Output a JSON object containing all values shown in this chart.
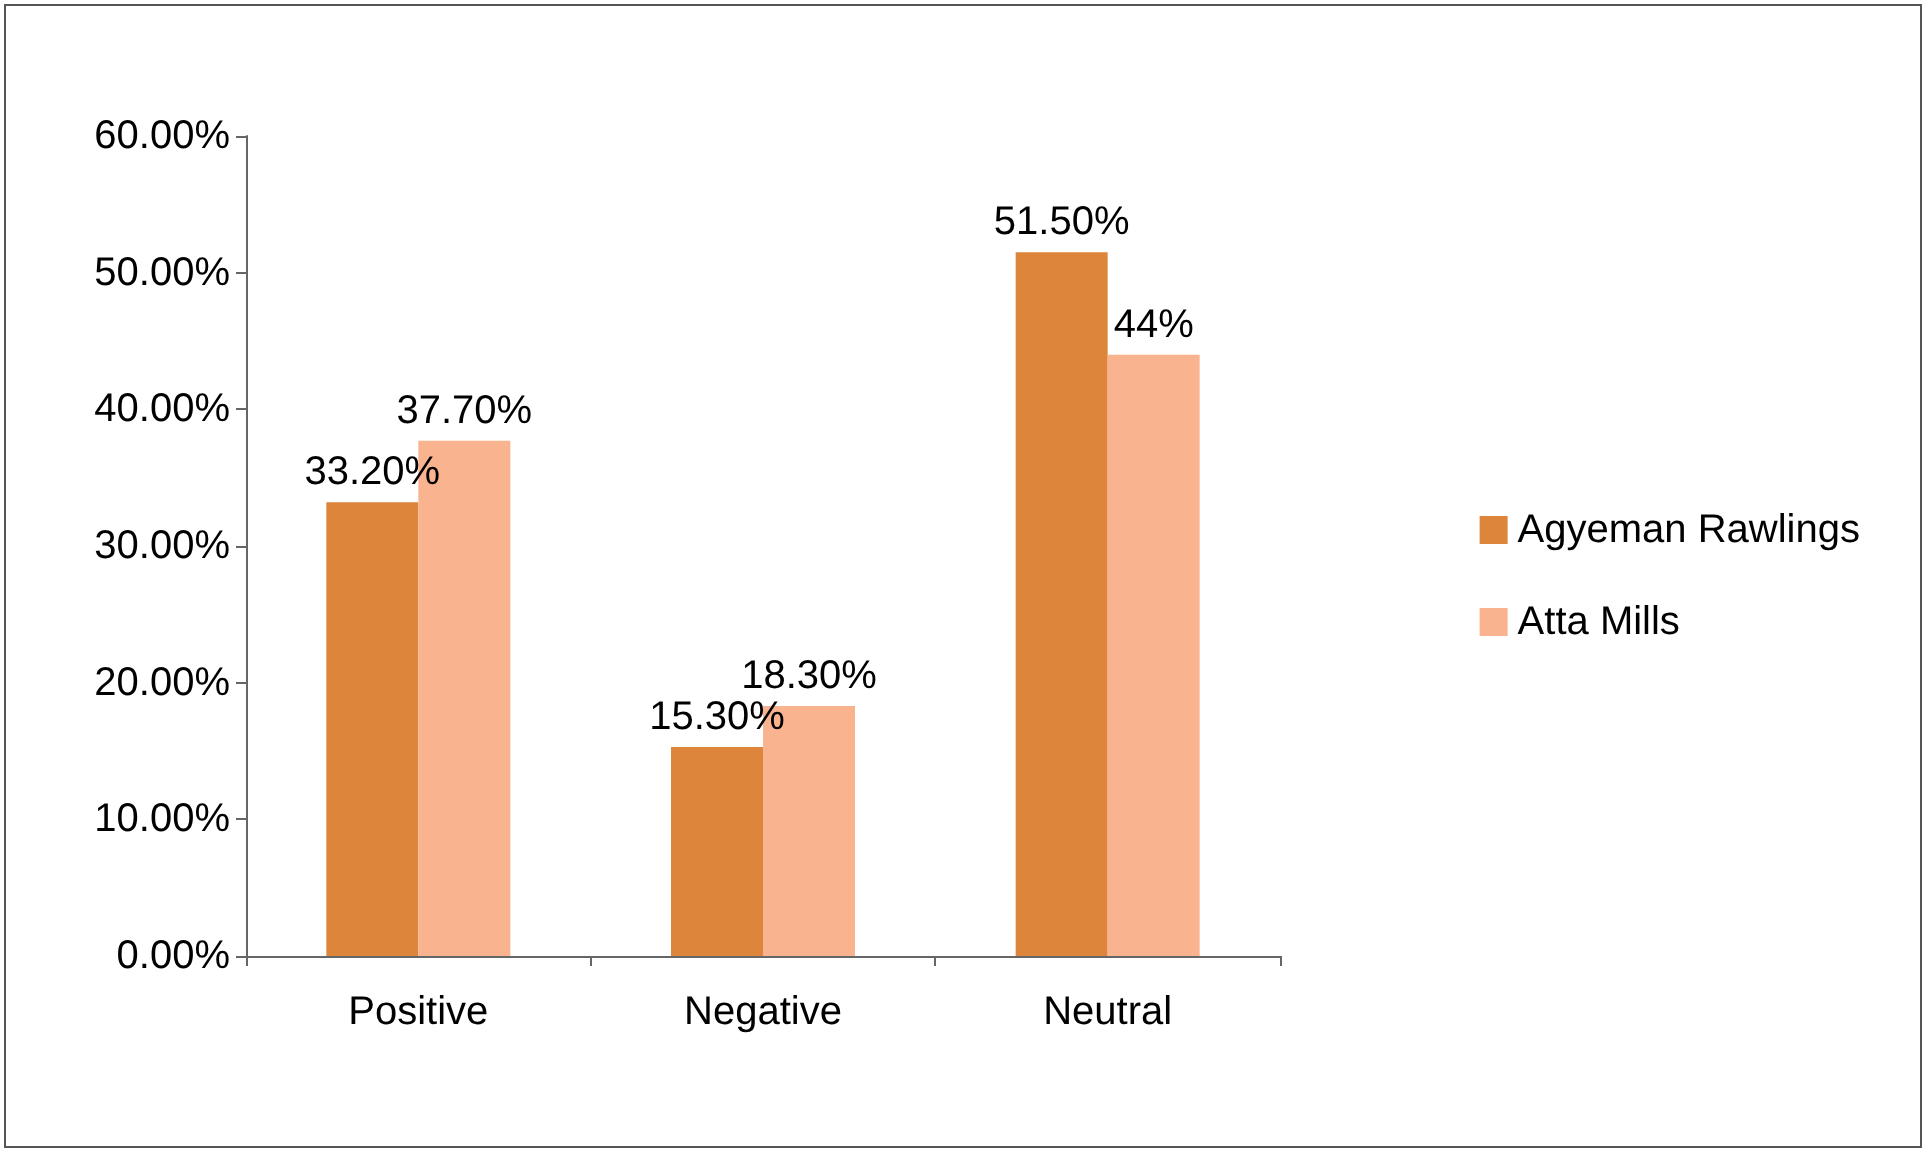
{
  "chart_data": {
    "type": "bar",
    "categories": [
      "Positive",
      "Negative",
      "Neutral"
    ],
    "series": [
      {
        "name": "Agyeman Rawlings",
        "color": "#dd853b",
        "values": [
          33.2,
          15.3,
          51.5
        ],
        "value_labels": [
          "33.20%",
          "15.30%",
          "51.50%"
        ]
      },
      {
        "name": "Atta Mills",
        "color": "#f9b48f",
        "values": [
          37.7,
          18.3,
          44
        ],
        "value_labels": [
          "37.70%",
          "18.30%",
          "44%"
        ]
      }
    ],
    "ylim": [
      0,
      60
    ],
    "yticks": [
      {
        "value": 0,
        "label": "0.00%"
      },
      {
        "value": 10,
        "label": "10.00%"
      },
      {
        "value": 20,
        "label": "20.00%"
      },
      {
        "value": 30,
        "label": "30.00%"
      },
      {
        "value": 40,
        "label": "40.00%"
      },
      {
        "value": 50,
        "label": "50.00%"
      },
      {
        "value": 60,
        "label": "60.00%"
      }
    ],
    "grid": false,
    "legend": "right"
  }
}
